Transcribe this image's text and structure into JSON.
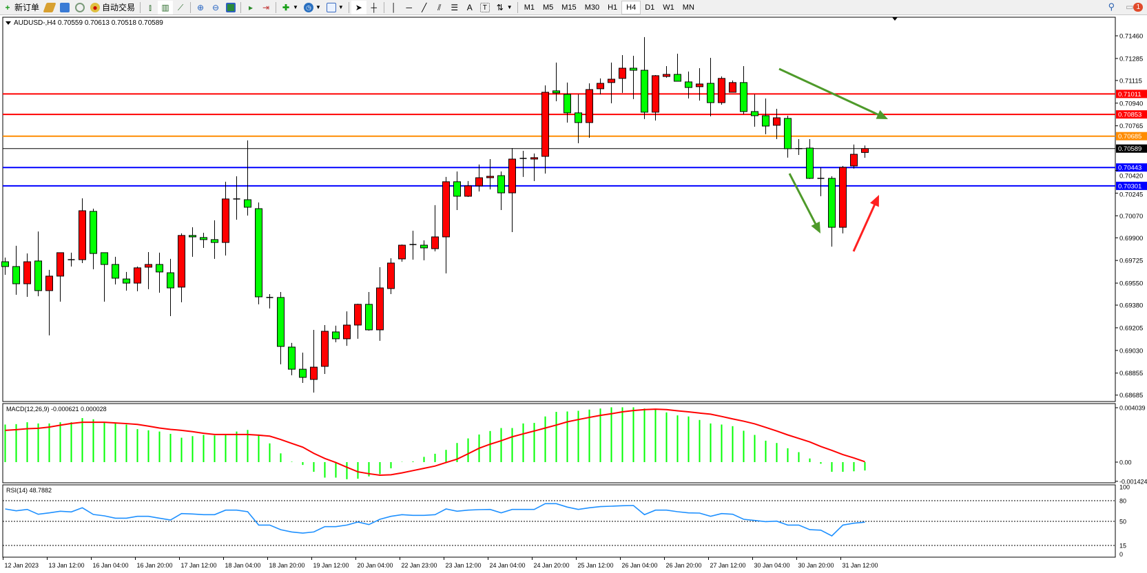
{
  "toolbar": {
    "new_order": "新订单",
    "auto_trading": "自动交易",
    "timeframes": [
      "M1",
      "M5",
      "M15",
      "M30",
      "H1",
      "H4",
      "D1",
      "W1",
      "MN"
    ],
    "active_timeframe": "H4",
    "notification_count": "1"
  },
  "chart": {
    "header": "AUDUSD-,H4  0.70559 0.70613 0.70518 0.70589",
    "bull_color": "#ff0000",
    "bear_color": "#00ff00",
    "price_ticks": [
      "0.71460",
      "0.71285",
      "0.71115",
      "0.70940",
      "0.70765",
      "0.70420",
      "0.70245",
      "0.70070",
      "0.69900",
      "0.69725",
      "0.69550",
      "0.69380",
      "0.69205",
      "0.69030",
      "0.68855",
      "0.68685"
    ],
    "levels": [
      {
        "price": "0.71011",
        "color": "#ff0000"
      },
      {
        "price": "0.70853",
        "color": "#ff0000"
      },
      {
        "price": "0.70685",
        "color": "#ff8c00"
      },
      {
        "price": "0.70589",
        "color": "#000000"
      },
      {
        "price": "0.70443",
        "color": "#0000ff"
      },
      {
        "price": "0.70301",
        "color": "#0000ff"
      }
    ],
    "arrows": [
      {
        "direction": "down-right",
        "color": "#4e9a2a"
      },
      {
        "direction": "down",
        "color": "#4e9a2a"
      },
      {
        "direction": "up",
        "color": "#ff2020"
      }
    ],
    "date_labels": [
      "12 Jan 2023",
      "13 Jan 12:00",
      "16 Jan 04:00",
      "16 Jan 20:00",
      "17 Jan 12:00",
      "18 Jan 04:00",
      "18 Jan 20:00",
      "19 Jan 12:00",
      "20 Jan 04:00",
      "22 Jan 23:00",
      "23 Jan 12:00",
      "24 Jan 04:00",
      "24 Jan 20:00",
      "25 Jan 12:00",
      "26 Jan 04:00",
      "26 Jan 20:00",
      "27 Jan 12:00",
      "30 Jan 04:00",
      "30 Jan 20:00",
      "31 Jan 12:00"
    ],
    "ohlc": [
      [
        0.69715,
        0.69747,
        0.69614,
        0.69678
      ],
      [
        0.69678,
        0.69838,
        0.6946,
        0.69545
      ],
      [
        0.69545,
        0.69779,
        0.69444,
        0.69715
      ],
      [
        0.69721,
        0.69949,
        0.69449,
        0.69492
      ],
      [
        0.69492,
        0.69652,
        0.69146,
        0.69604
      ],
      [
        0.69604,
        0.69785,
        0.69407,
        0.69785
      ],
      [
        0.69731,
        0.69785,
        0.69678,
        0.69731
      ],
      [
        0.69731,
        0.70205,
        0.69705,
        0.70109
      ],
      [
        0.70104,
        0.70125,
        0.69657,
        0.69779
      ],
      [
        0.69785,
        0.69785,
        0.69407,
        0.69694
      ],
      [
        0.69694,
        0.69753,
        0.6954,
        0.69588
      ],
      [
        0.69582,
        0.69636,
        0.69492,
        0.6955
      ],
      [
        0.6955,
        0.69678,
        0.69487,
        0.69668
      ],
      [
        0.69673,
        0.6979,
        0.69503,
        0.69694
      ],
      [
        0.69694,
        0.69785,
        0.69476,
        0.69636
      ],
      [
        0.6963,
        0.69737,
        0.69295,
        0.69513
      ],
      [
        0.69519,
        0.69934,
        0.69402,
        0.69918
      ],
      [
        0.69918,
        0.69981,
        0.69753,
        0.69907
      ],
      [
        0.69902,
        0.69939,
        0.69822,
        0.69886
      ],
      [
        0.69886,
        0.70035,
        0.69737,
        0.69864
      ],
      [
        0.69864,
        0.70333,
        0.69763,
        0.702
      ],
      [
        0.702,
        0.70375,
        0.7004,
        0.70198
      ],
      [
        0.70194,
        0.70652,
        0.70072,
        0.70136
      ],
      [
        0.70125,
        0.70173,
        0.69386,
        0.69444
      ],
      [
        0.69439,
        0.69465,
        0.69354,
        0.69438
      ],
      [
        0.69439,
        0.69481,
        0.68923,
        0.69061
      ],
      [
        0.69056,
        0.69088,
        0.68838,
        0.68885
      ],
      [
        0.68885,
        0.69013,
        0.68779,
        0.68822
      ],
      [
        0.68806,
        0.69189,
        0.68705,
        0.68901
      ],
      [
        0.68907,
        0.69226,
        0.68848,
        0.69178
      ],
      [
        0.69173,
        0.69221,
        0.69093,
        0.6912
      ],
      [
        0.6912,
        0.69332,
        0.69066,
        0.69226
      ],
      [
        0.69226,
        0.69391,
        0.6912,
        0.69386
      ],
      [
        0.69386,
        0.69481,
        0.69183,
        0.69189
      ],
      [
        0.69189,
        0.69673,
        0.69104,
        0.69513
      ],
      [
        0.69508,
        0.69742,
        0.69465,
        0.69705
      ],
      [
        0.69737,
        0.69848,
        0.69715,
        0.69843
      ],
      [
        0.69848,
        0.69955,
        0.69731,
        0.69847
      ],
      [
        0.69843,
        0.6988,
        0.69726,
        0.69822
      ],
      [
        0.69816,
        0.70152,
        0.69795,
        0.69907
      ],
      [
        0.69907,
        0.7037,
        0.69625,
        0.70333
      ],
      [
        0.70333,
        0.70412,
        0.70114,
        0.70221
      ],
      [
        0.70221,
        0.70338,
        0.70215,
        0.70301
      ],
      [
        0.70301,
        0.70466,
        0.70258,
        0.70364
      ],
      [
        0.70364,
        0.70508,
        0.70274,
        0.70375
      ],
      [
        0.7038,
        0.70412,
        0.70114,
        0.70247
      ],
      [
        0.70247,
        0.70593,
        0.69944,
        0.70508
      ],
      [
        0.70513,
        0.70572,
        0.7037,
        0.70512
      ],
      [
        0.70508,
        0.70551,
        0.70338,
        0.70519
      ],
      [
        0.70529,
        0.71077,
        0.70396,
        0.71024
      ],
      [
        0.71035,
        0.71253,
        0.70955,
        0.71019
      ],
      [
        0.71008,
        0.71099,
        0.7079,
        0.70865
      ],
      [
        0.70865,
        0.71008,
        0.7063,
        0.7079
      ],
      [
        0.7079,
        0.71093,
        0.70673,
        0.71045
      ],
      [
        0.71051,
        0.71131,
        0.71008,
        0.71093
      ],
      [
        0.71099,
        0.71253,
        0.70939,
        0.71125
      ],
      [
        0.71131,
        0.71311,
        0.71019,
        0.7121
      ],
      [
        0.7121,
        0.71306,
        0.70971,
        0.71194
      ],
      [
        0.71194,
        0.7145,
        0.70817,
        0.7087
      ],
      [
        0.7087,
        0.71157,
        0.70806,
        0.71152
      ],
      [
        0.71146,
        0.71226,
        0.71136,
        0.71162
      ],
      [
        0.71162,
        0.71322,
        0.71109,
        0.71109
      ],
      [
        0.71104,
        0.71184,
        0.70976,
        0.71061
      ],
      [
        0.71067,
        0.7121,
        0.7096,
        0.71088
      ],
      [
        0.71093,
        0.7129,
        0.70838,
        0.70944
      ],
      [
        0.70944,
        0.71146,
        0.70928,
        0.71131
      ],
      [
        0.71024,
        0.71115,
        0.71024,
        0.71099
      ],
      [
        0.71099,
        0.71226,
        0.70854,
        0.70875
      ],
      [
        0.70875,
        0.71008,
        0.70758,
        0.70843
      ],
      [
        0.70843,
        0.70976,
        0.707,
        0.70763
      ],
      [
        0.70769,
        0.70896,
        0.70662,
        0.70827
      ],
      [
        0.70822,
        0.70843,
        0.70519,
        0.70588
      ],
      [
        0.70588,
        0.70662,
        0.7054,
        0.70589
      ],
      [
        0.70593,
        0.70662,
        0.70354,
        0.70359
      ],
      [
        0.70359,
        0.70444,
        0.70221,
        0.70358
      ],
      [
        0.70359,
        0.70375,
        0.69832,
        0.69981
      ],
      [
        0.69981,
        0.70455,
        0.69934,
        0.70444
      ],
      [
        0.70455,
        0.7062,
        0.70434,
        0.70545
      ],
      [
        0.70559,
        0.70613,
        0.70518,
        0.70589
      ]
    ]
  },
  "macd": {
    "label": "MACD(12,26,9) -0.000621 0.000028",
    "ticks": [
      "0.004039",
      "0.00",
      "-0.001424"
    ],
    "hist_color": "#00ff00",
    "signal_color": "#ff0000",
    "histogram": [
      0.00279,
      0.00282,
      0.00296,
      0.00287,
      0.00287,
      0.00296,
      0.00296,
      0.00327,
      0.00318,
      0.00296,
      0.00291,
      0.00279,
      0.00245,
      0.00236,
      0.00227,
      0.0021,
      0.00181,
      0.00193,
      0.00202,
      0.00198,
      0.00205,
      0.00227,
      0.00239,
      0.00205,
      0.00139,
      0.00065,
      3e-05,
      -0.00021,
      -0.00072,
      -0.00115,
      -0.00115,
      -0.00127,
      -0.00123,
      -0.00106,
      -0.00089,
      -0.00046,
      2e-05,
      5e-05,
      0.00039,
      0.00062,
      0.00091,
      0.00142,
      0.00176,
      0.00205,
      0.00231,
      0.00253,
      0.00253,
      0.00287,
      0.00291,
      0.00339,
      0.00373,
      0.00376,
      0.00381,
      0.0039,
      0.00398,
      0.00407,
      0.00407,
      0.00407,
      0.00398,
      0.0039,
      0.00369,
      0.00347,
      0.00339,
      0.00313,
      0.00287,
      0.00279,
      0.00267,
      0.00233,
      0.00202,
      0.00159,
      0.00142,
      0.00103,
      0.00074,
      0.00027,
      -0.00012,
      -0.00072,
      -0.00072,
      -0.00068,
      -0.000621
    ],
    "signal": [
      0.00236,
      0.00241,
      0.00248,
      0.00251,
      0.0026,
      0.00274,
      0.00287,
      0.00296,
      0.00296,
      0.00296,
      0.00291,
      0.00286,
      0.0028,
      0.00267,
      0.00253,
      0.00243,
      0.00236,
      0.00226,
      0.00214,
      0.00205,
      0.00205,
      0.00205,
      0.00205,
      0.002,
      0.00193,
      0.00168,
      0.00139,
      0.00111,
      0.00065,
      0.00027,
      -3e-05,
      -0.00038,
      -0.00072,
      -0.00086,
      -0.00097,
      -0.00094,
      -0.0008,
      -0.00063,
      -0.00046,
      -0.00029,
      -3e-05,
      0.00022,
      0.00062,
      0.00103,
      0.00133,
      0.00159,
      0.00188,
      0.0021,
      0.00231,
      0.00253,
      0.00275,
      0.00299,
      0.00316,
      0.00332,
      0.00347,
      0.00359,
      0.00373,
      0.00383,
      0.0039,
      0.00393,
      0.0039,
      0.00381,
      0.00373,
      0.00364,
      0.00356,
      0.00339,
      0.00321,
      0.00304,
      0.00284,
      0.00258,
      0.00231,
      0.00202,
      0.00176,
      0.0015,
      0.00116,
      0.00087,
      0.00056,
      0.00031,
      2.8e-05
    ]
  },
  "rsi": {
    "label": "RSI(14) 48.7882",
    "ticks": [
      "100",
      "80",
      "50",
      "15",
      "0"
    ],
    "line_color": "#1e90ff",
    "values": [
      68.0,
      65.3,
      67.3,
      60.3,
      62.3,
      64.7,
      63.7,
      69.7,
      60.0,
      58.0,
      54.6,
      54.6,
      57.3,
      57.3,
      54.6,
      51.9,
      61.3,
      60.7,
      59.7,
      59.7,
      66.3,
      66.3,
      64.0,
      44.6,
      44.6,
      37.9,
      34.6,
      32.9,
      34.6,
      42.3,
      42.3,
      44.6,
      49.0,
      45.3,
      53.0,
      57.3,
      59.7,
      58.7,
      58.7,
      59.7,
      68.0,
      64.7,
      66.3,
      67.0,
      67.3,
      62.3,
      67.3,
      67.3,
      67.3,
      75.7,
      75.7,
      70.7,
      67.3,
      69.7,
      71.4,
      72.0,
      72.7,
      73.0,
      59.7,
      66.3,
      66.3,
      64.0,
      62.3,
      62.0,
      57.3,
      61.3,
      60.3,
      53.0,
      51.3,
      49.6,
      50.3,
      44.6,
      44.6,
      37.9,
      37.2,
      28.9,
      44.6,
      47.3,
      48.7882
    ]
  }
}
